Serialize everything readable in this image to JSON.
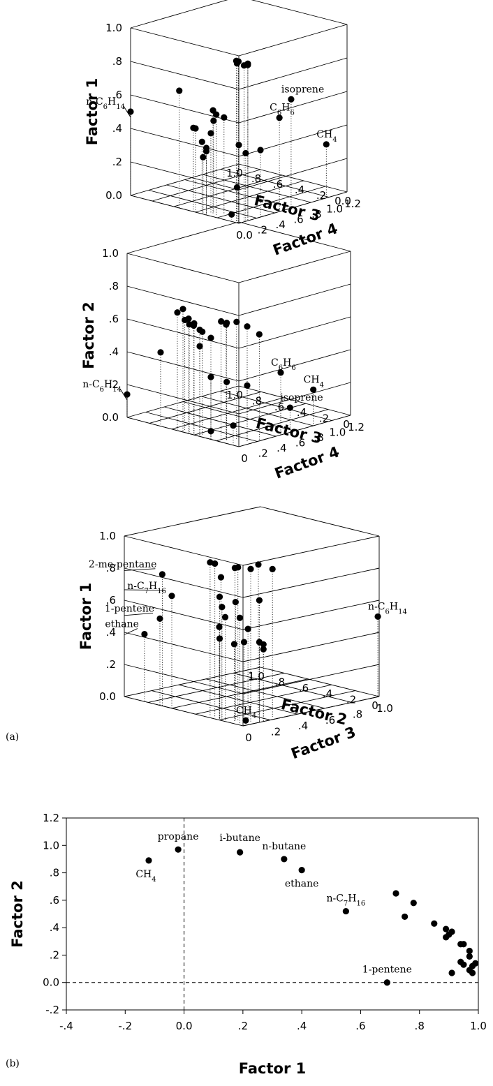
{
  "panel_labels": {
    "a": "(a)",
    "b": "(b)"
  },
  "chart_data": [
    {
      "type": "scatter3d",
      "zlabel": "Factor 1",
      "xlabel": "Factor 3",
      "ylabel": "Factor 4",
      "z_ticks": [
        "1.0",
        ".8",
        ".6",
        ".4",
        ".2",
        "0.0"
      ],
      "x_ticks": [
        "1.0",
        ".8",
        ".6",
        ".4",
        ".2",
        "0.0"
      ],
      "y_ticks": [
        "0.0",
        ".2",
        ".4",
        ".6",
        ".8",
        "1.0",
        "1.2"
      ],
      "xlim": [
        0,
        1.0
      ],
      "ylim": [
        0,
        1.2
      ],
      "zlim": [
        0,
        1.0
      ],
      "points": [
        {
          "x": 0.04,
          "y": 0.02,
          "z": 0.96
        },
        {
          "x": 0.02,
          "y": 0.02,
          "z": 0.96
        },
        {
          "x": 0.05,
          "y": 0.04,
          "z": 0.94
        },
        {
          "x": 0.01,
          "y": 0.07,
          "z": 0.93
        },
        {
          "x": 0.0,
          "y": 0.1,
          "z": 0.93
        },
        {
          "x": 0.05,
          "y": 0.16,
          "z": 0.92
        },
        {
          "x": 0.55,
          "y": 0.0,
          "z": 0.7
        },
        {
          "x": 0.28,
          "y": 0.05,
          "z": 0.62
        },
        {
          "x": 0.25,
          "y": 0.05,
          "z": 0.6
        },
        {
          "x": 0.22,
          "y": 0.1,
          "z": 0.58
        },
        {
          "x": 0.3,
          "y": 0.08,
          "z": 0.55
        },
        {
          "x": 0.42,
          "y": 0.0,
          "z": 0.5
        },
        {
          "x": 0.4,
          "y": 0.0,
          "z": 0.5
        },
        {
          "x": 0.3,
          "y": 0.05,
          "z": 0.48
        },
        {
          "x": 0.34,
          "y": 0.0,
          "z": 0.43
        },
        {
          "x": 0.3,
          "y": 0.0,
          "z": 0.4
        },
        {
          "x": 0.3,
          "y": 0.0,
          "z": 0.38
        },
        {
          "x": 0.33,
          "y": 0.0,
          "z": 0.34
        },
        {
          "x": 0.05,
          "y": 0.06,
          "z": 0.45
        },
        {
          "x": 0.02,
          "y": 0.1,
          "z": 0.4
        },
        {
          "x": 0.0,
          "y": 0.24,
          "z": 0.4
        },
        {
          "x": 0.05,
          "y": 0.04,
          "z": 0.2
        },
        {
          "x": 0.1,
          "y": 0.04,
          "z": 0.03
        },
        {
          "label": "isoprene",
          "x": 0.0,
          "y": 0.58,
          "z": 0.65
        },
        {
          "label": "C6H6",
          "x": 0.0,
          "y": 0.45,
          "z": 0.56
        },
        {
          "label": "CH4",
          "x": 0.0,
          "y": 0.97,
          "z": 0.32
        },
        {
          "label": "n-C6H14",
          "x": 1.0,
          "y": 0.0,
          "z": 0.5
        }
      ]
    },
    {
      "type": "scatter3d",
      "zlabel": "Factor 2",
      "xlabel": "Factor 3",
      "ylabel": "Factor 4",
      "z_ticks": [
        "1.0",
        ".8",
        ".6",
        ".4",
        ".2",
        "0.0"
      ],
      "x_ticks": [
        "1.0",
        ".8",
        ".6",
        ".4",
        ".2",
        "0"
      ],
      "y_ticks": [
        "0",
        ".2",
        ".4",
        ".6",
        ".8",
        "1.0",
        "1.2"
      ],
      "xlim": [
        0,
        1.0
      ],
      "ylim": [
        0,
        1.2
      ],
      "zlim": [
        0,
        1.0
      ],
      "points": [
        {
          "x": 0.5,
          "y": 0.0,
          "z": 0.75
        },
        {
          "x": 0.55,
          "y": 0.0,
          "z": 0.72
        },
        {
          "x": 0.45,
          "y": 0.0,
          "z": 0.7
        },
        {
          "x": 0.4,
          "y": 0.0,
          "z": 0.68
        },
        {
          "x": 0.5,
          "y": 0.02,
          "z": 0.68
        },
        {
          "x": 0.42,
          "y": 0.02,
          "z": 0.66
        },
        {
          "x": 0.46,
          "y": 0.02,
          "z": 0.66
        },
        {
          "x": 0.35,
          "y": 0.0,
          "z": 0.65
        },
        {
          "x": 0.36,
          "y": 0.04,
          "z": 0.63
        },
        {
          "x": 0.3,
          "y": 0.06,
          "z": 0.6
        },
        {
          "x": 0.2,
          "y": 0.05,
          "z": 0.72
        },
        {
          "x": 0.15,
          "y": 0.05,
          "z": 0.72
        },
        {
          "x": 0.12,
          "y": 0.12,
          "z": 0.72
        },
        {
          "x": 0.18,
          "y": 0.08,
          "z": 0.7
        },
        {
          "x": 0.05,
          "y": 0.15,
          "z": 0.7
        },
        {
          "x": 0.0,
          "y": 0.22,
          "z": 0.65
        },
        {
          "x": 0.35,
          "y": 0.0,
          "z": 0.55
        },
        {
          "x": 0.7,
          "y": 0.0,
          "z": 0.45
        },
        {
          "x": 0.25,
          "y": 0.0,
          "z": 0.38
        },
        {
          "x": 0.15,
          "y": 0.05,
          "z": 0.36
        },
        {
          "x": 0.05,
          "y": 0.15,
          "z": 0.34
        },
        {
          "x": 0.05,
          "y": 0.0,
          "z": 0.12
        },
        {
          "x": 0.25,
          "y": 0.0,
          "z": 0.05
        },
        {
          "label": "C6H6",
          "x": 0.0,
          "y": 0.45,
          "z": 0.38
        },
        {
          "label": "CH4",
          "x": 0.0,
          "y": 0.8,
          "z": 0.22
        },
        {
          "label": "isoprene",
          "x": 0.0,
          "y": 0.55,
          "z": 0.15
        },
        {
          "label": "n-C6H14",
          "x": 1.0,
          "y": 0.0,
          "z": 0.14
        }
      ]
    },
    {
      "type": "scatter3d",
      "zlabel": "Factor 1",
      "xlabel": "Factor 2",
      "ylabel": "Factor 3",
      "z_ticks": [
        "1.0",
        ".8",
        ".6",
        ".4",
        ".2",
        "0.0"
      ],
      "x_ticks": [
        "1.0",
        ".8",
        ".6",
        ".4",
        ".2",
        "0"
      ],
      "y_ticks": [
        "0",
        ".2",
        ".4",
        ".6",
        ".8",
        "1.0"
      ],
      "xlim": [
        0,
        1.0
      ],
      "ylim": [
        0,
        1.0
      ],
      "zlim": [
        0,
        1.0
      ],
      "points": [
        {
          "x": 0.3,
          "y": 0.02,
          "z": 0.96
        },
        {
          "x": 0.26,
          "y": 0.02,
          "z": 0.96
        },
        {
          "x": 0.1,
          "y": 0.05,
          "z": 0.96
        },
        {
          "x": 0.05,
          "y": 0.1,
          "z": 0.95
        },
        {
          "x": 0.1,
          "y": 0.2,
          "z": 0.95
        },
        {
          "x": 0.05,
          "y": 0.26,
          "z": 0.92
        },
        {
          "x": 0.16,
          "y": 0.08,
          "z": 0.94
        },
        {
          "x": 0.22,
          "y": 0.03,
          "z": 0.88
        },
        {
          "x": 0.22,
          "y": 0.02,
          "z": 0.76
        },
        {
          "x": 0.12,
          "y": 0.05,
          "z": 0.74
        },
        {
          "x": 0.0,
          "y": 0.12,
          "z": 0.76
        },
        {
          "x": 0.2,
          "y": 0.02,
          "z": 0.7
        },
        {
          "x": 0.15,
          "y": 0.0,
          "z": 0.65
        },
        {
          "x": 0.05,
          "y": 0.02,
          "z": 0.66
        },
        {
          "x": 0.2,
          "y": 0.0,
          "z": 0.58
        },
        {
          "x": 0.05,
          "y": 0.08,
          "z": 0.58
        },
        {
          "x": 0.0,
          "y": 0.12,
          "z": 0.5
        },
        {
          "x": 0.22,
          "y": 0.02,
          "z": 0.5
        },
        {
          "x": 0.12,
          "y": 0.04,
          "z": 0.48
        },
        {
          "x": 0.06,
          "y": 0.06,
          "z": 0.5
        },
        {
          "x": 0.0,
          "y": 0.15,
          "z": 0.48
        },
        {
          "x": 0.0,
          "y": 0.15,
          "z": 0.45
        },
        {
          "label": "2-me-pentane",
          "x": 0.68,
          "y": 0.0,
          "z": 0.82
        },
        {
          "label": "n-C7H16",
          "x": 0.6,
          "y": 0.0,
          "z": 0.7
        },
        {
          "label": "1-pentene",
          "x": 0.7,
          "y": 0.0,
          "z": 0.54
        },
        {
          "label": "ethane",
          "x": 0.83,
          "y": 0.0,
          "z": 0.42
        },
        {
          "label": "CH4",
          "x": 0.0,
          "y": 0.02,
          "z": 0.03
        },
        {
          "label": "n-C6H14",
          "x": 0.0,
          "y": 0.99,
          "z": 0.5
        }
      ]
    },
    {
      "type": "scatter",
      "xlabel": "Factor 1",
      "ylabel": "Factor 2",
      "xlim": [
        -0.4,
        1.0
      ],
      "ylim": [
        -0.2,
        1.2
      ],
      "x_ticks": [
        "-.4",
        "-.2",
        "0.0",
        ".2",
        ".4",
        ".6",
        ".8",
        "1.0"
      ],
      "y_ticks": [
        "1.2",
        "1.0",
        ".8",
        ".6",
        ".4",
        ".2",
        "0.0",
        "-.2"
      ],
      "reference_lines": {
        "x": 0.0,
        "y": 0.0
      },
      "points": [
        {
          "label": "CH4",
          "x": -0.12,
          "y": 0.89
        },
        {
          "label": "propane",
          "x": -0.02,
          "y": 0.97
        },
        {
          "label": "i-butane",
          "x": 0.19,
          "y": 0.95
        },
        {
          "label": "n-butane",
          "x": 0.34,
          "y": 0.9
        },
        {
          "label": "ethane",
          "x": 0.4,
          "y": 0.82
        },
        {
          "label": "n-C7H16",
          "x": 0.55,
          "y": 0.52
        },
        {
          "label": "1-pentene",
          "x": 0.69,
          "y": 0.0
        },
        {
          "x": 0.72,
          "y": 0.65
        },
        {
          "x": 0.78,
          "y": 0.58
        },
        {
          "x": 0.75,
          "y": 0.48
        },
        {
          "x": 0.85,
          "y": 0.43
        },
        {
          "x": 0.89,
          "y": 0.39
        },
        {
          "x": 0.91,
          "y": 0.37
        },
        {
          "x": 0.9,
          "y": 0.35
        },
        {
          "x": 0.89,
          "y": 0.33
        },
        {
          "x": 0.94,
          "y": 0.28
        },
        {
          "x": 0.95,
          "y": 0.28
        },
        {
          "x": 0.97,
          "y": 0.23
        },
        {
          "x": 0.97,
          "y": 0.19
        },
        {
          "x": 0.94,
          "y": 0.15
        },
        {
          "x": 0.95,
          "y": 0.13
        },
        {
          "x": 0.99,
          "y": 0.14
        },
        {
          "x": 0.98,
          "y": 0.12
        },
        {
          "x": 0.97,
          "y": 0.09
        },
        {
          "x": 0.98,
          "y": 0.07
        },
        {
          "x": 0.91,
          "y": 0.07
        }
      ]
    }
  ]
}
